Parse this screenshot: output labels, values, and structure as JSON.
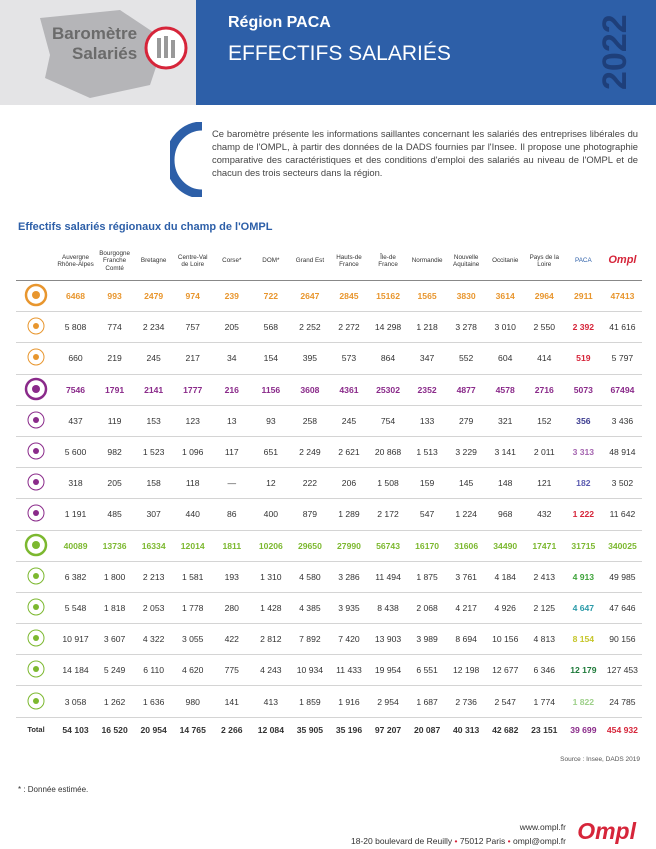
{
  "header": {
    "logo_line1": "Baromètre",
    "logo_line2": "Salariés",
    "region": "Région PACA",
    "title": "EFFECTIFS SALARIÉS",
    "year": "2022"
  },
  "intro": "Ce baromètre présente les informations saillantes concernant les salariés des entreprises libérales du champ de l'OMPL, à partir des données de la DADS fournies par l'Insee. Il propose une photographie comparative des caractéristiques et des conditions d'emploi des salariés au niveau de l'OMPL et de chacun des trois secteurs dans la région.",
  "table": {
    "title": "Effectifs salariés régionaux du champ de l'OMPL",
    "columns": [
      "Auvergne Rhône-Alpes",
      "Bourgogne Franche Comté",
      "Bretagne",
      "Centre-Val de Loire",
      "Corse*",
      "DOM*",
      "Grand Est",
      "Hauts-de France",
      "Île-de France",
      "Normandie",
      "Nouvelle Aquitaine",
      "Occitanie",
      "Pays de la Loire",
      "PACA",
      "Ompl"
    ],
    "groups": [
      {
        "color": "#e8962e",
        "rows": [
          {
            "values": [
              "6468",
              "993",
              "2479",
              "974",
              "239",
              "722",
              "2647",
              "2845",
              "15162",
              "1565",
              "3830",
              "3614",
              "2964",
              "2911",
              "47413"
            ],
            "paca_color": "#e8962e"
          },
          {
            "values": [
              "5 808",
              "774",
              "2 234",
              "757",
              "205",
              "568",
              "2 252",
              "2 272",
              "14 298",
              "1 218",
              "3 278",
              "3 010",
              "2 550",
              "2 392",
              "41 616"
            ],
            "paca_color": "#d6253a"
          },
          {
            "values": [
              "660",
              "219",
              "245",
              "217",
              "34",
              "154",
              "395",
              "573",
              "864",
              "347",
              "552",
              "604",
              "414",
              "519",
              "5 797"
            ],
            "paca_color": "#d6253a"
          }
        ]
      },
      {
        "color": "#8a2a8a",
        "rows": [
          {
            "values": [
              "7546",
              "1791",
              "2141",
              "1777",
              "216",
              "1156",
              "3608",
              "4361",
              "25302",
              "2352",
              "4877",
              "4578",
              "2716",
              "5073",
              "67494"
            ],
            "paca_color": "#8a2a8a"
          },
          {
            "values": [
              "437",
              "119",
              "153",
              "123",
              "13",
              "93",
              "258",
              "245",
              "754",
              "133",
              "279",
              "321",
              "152",
              "356",
              "3 436"
            ],
            "paca_color": "#3a3a8f"
          },
          {
            "values": [
              "5 600",
              "982",
              "1 523",
              "1 096",
              "117",
              "651",
              "2 249",
              "2 621",
              "20 868",
              "1 513",
              "3 229",
              "3 141",
              "2 011",
              "3 313",
              "48 914"
            ],
            "paca_color": "#a565b0"
          },
          {
            "values": [
              "318",
              "205",
              "158",
              "118",
              "—",
              "12",
              "222",
              "206",
              "1 508",
              "159",
              "145",
              "148",
              "121",
              "182",
              "3 502"
            ],
            "paca_color": "#5a5ab0"
          },
          {
            "values": [
              "1 191",
              "485",
              "307",
              "440",
              "86",
              "400",
              "879",
              "1 289",
              "2 172",
              "547",
              "1 224",
              "968",
              "432",
              "1 222",
              "11 642"
            ],
            "paca_color": "#d6253a"
          }
        ]
      },
      {
        "color": "#7cb82f",
        "rows": [
          {
            "values": [
              "40089",
              "13736",
              "16334",
              "12014",
              "1811",
              "10206",
              "29650",
              "27990",
              "56743",
              "16170",
              "31606",
              "34490",
              "17471",
              "31715",
              "340025"
            ],
            "paca_color": "#7cb82f"
          },
          {
            "values": [
              "6 382",
              "1 800",
              "2 213",
              "1 581",
              "193",
              "1 310",
              "4 580",
              "3 286",
              "11 494",
              "1 875",
              "3 761",
              "4 184",
              "2 413",
              "4 913",
              "49 985"
            ],
            "paca_color": "#3ea33a"
          },
          {
            "values": [
              "5 548",
              "1 818",
              "2 053",
              "1 778",
              "280",
              "1 428",
              "4 385",
              "3 935",
              "8 438",
              "2 068",
              "4 217",
              "4 926",
              "2 125",
              "4 647",
              "47 646"
            ],
            "paca_color": "#2a9aa8"
          },
          {
            "values": [
              "10 917",
              "3 607",
              "4 322",
              "3 055",
              "422",
              "2 812",
              "7 892",
              "7 420",
              "13 903",
              "3 989",
              "8 694",
              "10 156",
              "4 813",
              "8 154",
              "90 156"
            ],
            "paca_color": "#c6c62a"
          },
          {
            "values": [
              "14 184",
              "5 249",
              "6 110",
              "4 620",
              "775",
              "4 243",
              "10 934",
              "11 433",
              "19 954",
              "6 551",
              "12 198",
              "12 677",
              "6 346",
              "12 179",
              "127 453"
            ],
            "paca_color": "#1e7a3a"
          },
          {
            "values": [
              "3 058",
              "1 262",
              "1 636",
              "980",
              "141",
              "413",
              "1 859",
              "1 916",
              "2 954",
              "1 687",
              "2 736",
              "2 547",
              "1 774",
              "1 822",
              "24 785"
            ],
            "paca_color": "#9ed08a"
          }
        ]
      }
    ],
    "total": {
      "label": "Total",
      "values": [
        "54 103",
        "16 520",
        "20 954",
        "14 765",
        "2 266",
        "12 084",
        "35 905",
        "35 196",
        "97 207",
        "20 087",
        "40 313",
        "42 682",
        "23 151",
        "39 699",
        "454 932"
      ],
      "paca_color": "#8a2a8a",
      "ompl_color": "#d6253a"
    },
    "source": "Source : Insee, DADS 2019"
  },
  "footnote": "* : Donnée estimée.",
  "footer": {
    "web": "www.ompl.fr",
    "address": "18-20 boulevard de Reuilly",
    "city": "75012 Paris",
    "email": "ompl@ompl.fr",
    "logo": "Ompl"
  }
}
